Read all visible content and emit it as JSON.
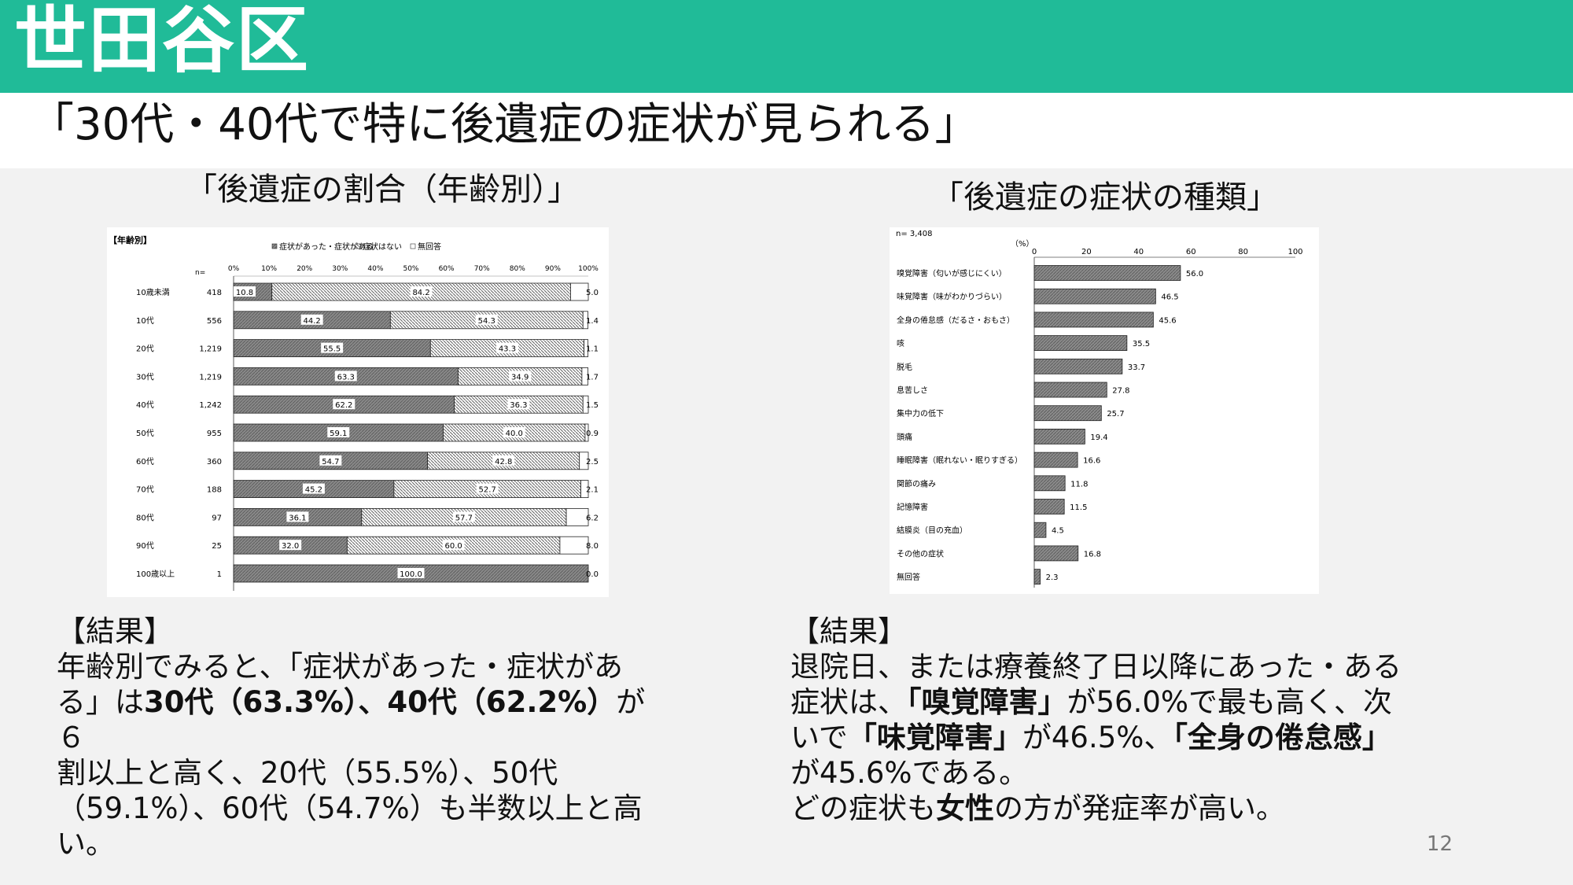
{
  "header": {
    "title": "世田谷区",
    "subtitle": "「30代・40代で特に後遺症の症状が見られる」"
  },
  "colors": {
    "header_bg": "#20bb98",
    "bar_dark": "#8a8a8a",
    "bar_light": "#ffffff"
  },
  "left": {
    "title": "「後遺症の割合（年齢別）」",
    "result_heading": "【結果】",
    "result_lines": [
      [
        {
          "t": "年齢別でみると、「症状があった・症状があ"
        }
      ],
      [
        {
          "t": "る」は"
        },
        {
          "t": "30代（63.3%）、40代（62.2%）",
          "b": true
        },
        {
          "t": "が６"
        }
      ],
      [
        {
          "t": "割以上と高く、20代（55.5%）、50代"
        }
      ],
      [
        {
          "t": "（59.1%）、60代（54.7%）も半数以上と高"
        }
      ],
      [
        {
          "t": "い。"
        }
      ]
    ]
  },
  "right": {
    "title": "「後遺症の症状の種類」",
    "result_heading": "【結果】",
    "result_lines": [
      [
        {
          "t": "退院日、または療養終了日以降にあった・ある"
        }
      ],
      [
        {
          "t": "症状は、"
        },
        {
          "t": "「嗅覚障害」",
          "b": true
        },
        {
          "t": "が56.0%で最も高く、次"
        }
      ],
      [
        {
          "t": "いで"
        },
        {
          "t": "「味覚障害」",
          "b": true
        },
        {
          "t": "が46.5%、"
        },
        {
          "t": "「全身の倦怠感」",
          "b": true
        }
      ],
      [
        {
          "t": "が45.6%である。"
        }
      ],
      [
        {
          "t": "どの症状も"
        },
        {
          "t": "女性",
          "b": true
        },
        {
          "t": "の方が発症率が高い。"
        }
      ]
    ]
  },
  "page_number": "12",
  "chart_data": [
    {
      "type": "bar",
      "orientation": "horizontal-stacked-100",
      "title": "",
      "header_label": "【年齢別】",
      "n_label": "n=",
      "xticks": [
        "0%",
        "10%",
        "20%",
        "30%",
        "40%",
        "50%",
        "60%",
        "70%",
        "80%",
        "90%",
        "100%"
      ],
      "categories": [
        "10歳未満",
        "10代",
        "20代",
        "30代",
        "40代",
        "50代",
        "60代",
        "70代",
        "80代",
        "90代",
        "100歳以上"
      ],
      "n": [
        "418",
        "556",
        "1,219",
        "1,219",
        "1,242",
        "955",
        "360",
        "188",
        "97",
        "25",
        "1"
      ],
      "series": [
        {
          "name": "症状があった・症状がある",
          "values": [
            10.8,
            44.2,
            55.5,
            63.3,
            62.2,
            59.1,
            54.7,
            45.2,
            36.1,
            32.0,
            100.0
          ]
        },
        {
          "name": "症状はない",
          "values": [
            84.2,
            54.3,
            43.3,
            34.9,
            36.3,
            40.0,
            42.8,
            52.7,
            57.7,
            60.0,
            0
          ]
        },
        {
          "name": "無回答",
          "values": [
            5.0,
            1.4,
            1.1,
            1.7,
            1.5,
            0.9,
            2.5,
            2.1,
            6.2,
            8.0,
            0.0
          ]
        }
      ],
      "labels": [
        [
          "10.8",
          "84.2",
          "5.0"
        ],
        [
          "44.2",
          "54.3",
          "1.4"
        ],
        [
          "55.5",
          "43.3",
          "1.1"
        ],
        [
          "63.3",
          "34.9",
          "1.7"
        ],
        [
          "62.2",
          "36.3",
          "1.5"
        ],
        [
          "59.1",
          "40.0",
          "0.9"
        ],
        [
          "54.7",
          "42.8",
          "2.5"
        ],
        [
          "45.2",
          "52.7",
          "2.1"
        ],
        [
          "36.1",
          "57.7",
          "6.2"
        ],
        [
          "32.0",
          "60.0",
          "8.0"
        ],
        [
          "100.0",
          "",
          "0.0"
        ]
      ],
      "xlim": [
        0,
        100
      ]
    },
    {
      "type": "bar",
      "orientation": "horizontal",
      "title": "",
      "n_label": "n= 3,408",
      "unit_label": "（%）",
      "xticks": [
        "0",
        "20",
        "40",
        "60",
        "80",
        "100"
      ],
      "xlim": [
        0,
        100
      ],
      "categories": [
        "嗅覚障害（匂いが感じにくい）",
        "味覚障害（味がわかりづらい）",
        "全身の倦怠感（だるさ・おもさ）",
        "咳",
        "脱毛",
        "息苦しさ",
        "集中力の低下",
        "頭痛",
        "睡眠障害（眠れない・眠りすぎる）",
        "関節の痛み",
        "記憶障害",
        "結膜炎（目の充血）",
        "その他の症状",
        "無回答"
      ],
      "values": [
        56.0,
        46.5,
        45.6,
        35.5,
        33.7,
        27.8,
        25.7,
        19.4,
        16.6,
        11.8,
        11.5,
        4.5,
        16.8,
        2.3
      ],
      "labels": [
        "56.0",
        "46.5",
        "45.6",
        "35.5",
        "33.7",
        "27.8",
        "25.7",
        "19.4",
        "16.6",
        "11.8",
        "11.5",
        "4.5",
        "16.8",
        "2.3"
      ]
    }
  ]
}
